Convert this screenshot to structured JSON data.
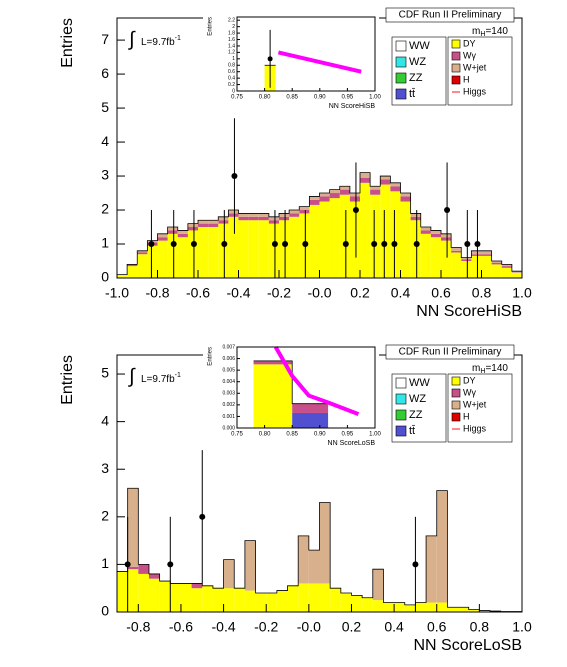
{
  "chart_data": [
    {
      "type": "histogram",
      "experiment": "CDF Run II Preliminary",
      "mass_label": "m",
      "mass_sub": "H",
      "mass_value": "=140",
      "lumi": "L=9.7fb",
      "lumi_sup": "-1",
      "x_label": "NN ScoreHiSB",
      "y_label": "Entries",
      "xlim": [
        -1,
        1
      ],
      "ylim": [
        0,
        7.65
      ],
      "xticks": [
        {
          "value": -1,
          "label": "-1.0"
        },
        -0.8,
        -0.6,
        -0.4,
        -0.2,
        {
          "value": 0,
          "label": "-0.0"
        },
        0.2,
        0.4,
        0.6,
        0.8,
        {
          "value": 1,
          "label": "1.0"
        }
      ],
      "yticks": [
        0,
        1,
        2,
        3,
        4,
        5,
        6,
        7
      ],
      "bins": [
        -1,
        -0.95,
        -0.9,
        -0.85,
        -0.8,
        -0.75,
        -0.7,
        -0.65,
        -0.6,
        -0.55,
        -0.5,
        -0.45,
        -0.4,
        -0.35,
        -0.3,
        -0.25,
        -0.2,
        -0.15,
        -0.1,
        -0.05,
        0,
        0.05,
        0.1,
        0.15,
        0.2,
        0.25,
        0.3,
        0.35,
        0.4,
        0.45,
        0.5,
        0.55,
        0.6,
        0.65,
        0.7,
        0.75,
        0.8,
        0.85,
        0.9,
        0.95,
        1
      ],
      "series": [
        {
          "name": "WW",
          "color": "#ffffff"
        },
        {
          "name": "WZ",
          "color": "#33e6e6"
        },
        {
          "name": "ZZ",
          "color": "#33cc33"
        },
        {
          "name": "tt̄",
          "color": "#5050d0"
        },
        {
          "name": "DY",
          "color": "#ffff00",
          "values": [
            0.1,
            0.35,
            0.7,
            0.95,
            1.1,
            1.3,
            1.2,
            1.4,
            1.5,
            1.5,
            1.6,
            1.8,
            1.7,
            1.7,
            1.7,
            1.6,
            1.7,
            1.8,
            1.9,
            2.15,
            2.25,
            2.35,
            2.45,
            2.25,
            2.8,
            2.45,
            2.75,
            2.55,
            2.25,
            1.7,
            1.3,
            1.2,
            1.1,
            0.75,
            0.5,
            0.65,
            0.65,
            0.4,
            0.3,
            0.15
          ]
        },
        {
          "name": "Wγ",
          "color": "#c8508a",
          "values": [
            0,
            0.05,
            0.05,
            0.1,
            0.1,
            0.1,
            0.1,
            0.1,
            0.1,
            0.1,
            0.1,
            0.1,
            0.1,
            0.1,
            0.1,
            0.1,
            0.1,
            0.1,
            0.1,
            0.15,
            0.15,
            0.15,
            0.15,
            0.15,
            0.15,
            0.15,
            0.15,
            0.15,
            0.15,
            0.1,
            0.1,
            0.1,
            0.1,
            0.05,
            0.05,
            0.05,
            0.05,
            0.05,
            0.05,
            0
          ]
        },
        {
          "name": "W+jet",
          "color": "#d9b08c",
          "values": [
            0,
            0,
            0.05,
            0.05,
            0.1,
            0.1,
            0.1,
            0.1,
            0.1,
            0.1,
            0.1,
            0.1,
            0.1,
            0.1,
            0.1,
            0.1,
            0.1,
            0.1,
            0.1,
            0.1,
            0.1,
            0.1,
            0.1,
            0.1,
            0.15,
            0.1,
            0.1,
            0.1,
            0.1,
            0.1,
            0.1,
            0.1,
            0.1,
            0.1,
            0.05,
            0.1,
            0.1,
            0.05,
            0.05,
            0.05
          ]
        },
        {
          "name": "H",
          "color": "#e00000"
        },
        {
          "name": "Higgs",
          "color": "#ff6060",
          "style": "line"
        }
      ],
      "data_points": {
        "x": [
          -0.83,
          -0.72,
          -0.62,
          -0.47,
          -0.42,
          -0.22,
          -0.17,
          -0.07,
          0.13,
          0.18,
          0.27,
          0.32,
          0.37,
          0.48,
          0.63,
          0.73,
          0.78
        ],
        "y": [
          1,
          1,
          1,
          1,
          3,
          1,
          1,
          1,
          1,
          2,
          1,
          1,
          1,
          1,
          2,
          1,
          1
        ],
        "err": [
          1,
          1,
          1,
          1,
          1.7,
          1,
          1,
          1,
          1,
          1.4,
          1,
          1,
          1,
          1,
          1.4,
          1,
          1
        ]
      },
      "inset": {
        "x_label": "NN ScoreHiSB",
        "y_label": "Entries",
        "xlim": [
          0.75,
          1
        ],
        "ylim": [
          0,
          2.3
        ],
        "xticks": [
          0.75,
          {
            "value": 0.8,
            "label": "0.80"
          },
          0.85,
          {
            "value": 0.9,
            "label": "0.90"
          },
          0.95,
          {
            "value": 1,
            "label": "1.00"
          }
        ],
        "yticks": [
          0,
          0.2,
          0.4,
          0.6,
          0.8,
          1,
          1.2,
          1.4,
          1.6,
          1.8,
          2,
          2.2
        ],
        "bins": [
          0.8,
          0.82
        ],
        "series": [
          {
            "color": "#ffff00",
            "values": [
              0.8
            ]
          }
        ],
        "line": {
          "color": "#ff00ff",
          "x": [
            0.825,
            0.975
          ],
          "y": [
            1.2,
            0.6
          ]
        },
        "data_points": {
          "x": [
            0.81
          ],
          "y": [
            1
          ],
          "err": [
            0.9
          ]
        }
      }
    },
    {
      "type": "histogram",
      "experiment": "CDF Run II Preliminary",
      "mass_label": "m",
      "mass_sub": "H",
      "mass_value": "=140",
      "lumi": "L=9.7fb",
      "lumi_sup": "-1",
      "x_label": "NN ScoreLoSB",
      "y_label": "Entries",
      "xlim": [
        -0.9,
        1
      ],
      "ylim": [
        0,
        5.4
      ],
      "xticks": [
        -0.8,
        -0.6,
        -0.4,
        -0.2,
        {
          "value": 0,
          "label": "-0.0"
        },
        0.2,
        0.4,
        0.6,
        0.8,
        {
          "value": 1,
          "label": "1.0"
        }
      ],
      "yticks": [
        0,
        1,
        2,
        3,
        4,
        5
      ],
      "bins": [
        -0.9,
        -0.85,
        -0.8,
        -0.75,
        -0.7,
        -0.65,
        -0.6,
        -0.55,
        -0.5,
        -0.45,
        -0.4,
        -0.35,
        -0.3,
        -0.25,
        -0.2,
        -0.15,
        -0.1,
        -0.05,
        0,
        0.05,
        0.1,
        0.15,
        0.2,
        0.25,
        0.3,
        0.35,
        0.4,
        0.45,
        0.5,
        0.55,
        0.6,
        0.65,
        0.7,
        0.75,
        0.8,
        0.85,
        0.9,
        0.95,
        1
      ],
      "series": [
        {
          "name": "WW",
          "color": "#ffffff"
        },
        {
          "name": "WZ",
          "color": "#33e6e6"
        },
        {
          "name": "ZZ",
          "color": "#33cc33"
        },
        {
          "name": "tt̄",
          "color": "#5050d0"
        },
        {
          "name": "DY",
          "color": "#ffff00",
          "values": [
            0.85,
            0.9,
            0.8,
            0.7,
            0.65,
            0.6,
            0.6,
            0.5,
            0.55,
            0.5,
            0.5,
            0.5,
            0.45,
            0.4,
            0.4,
            0.45,
            0.55,
            0.6,
            0.6,
            0.6,
            0.5,
            0.4,
            0.35,
            0.3,
            0.25,
            0.2,
            0.2,
            0.15,
            0.2,
            0.2,
            0.2,
            0.1,
            0.1,
            0.05,
            0.03,
            0.02,
            0.01,
            0.01
          ]
        },
        {
          "name": "Wγ",
          "color": "#c8508a",
          "values": [
            0,
            0.05,
            0.2,
            0.1,
            0,
            0,
            0,
            0.1,
            0,
            0,
            0,
            0,
            0,
            0,
            0,
            0,
            0,
            0,
            0,
            0,
            0,
            0,
            0,
            0,
            0,
            0,
            0,
            0,
            0,
            0,
            0,
            0,
            0,
            0,
            0,
            0,
            0,
            0
          ]
        },
        {
          "name": "W+jet",
          "color": "#d9b08c",
          "values": [
            0,
            1.65,
            0,
            0,
            0,
            0,
            0,
            0,
            0,
            0,
            0.6,
            0,
            1.05,
            0,
            0,
            0,
            0,
            1,
            0.7,
            1.7,
            0,
            0,
            0,
            0,
            0.65,
            0,
            0,
            0,
            0,
            1.4,
            2.35,
            0,
            0,
            0,
            0,
            0,
            0,
            0
          ]
        },
        {
          "name": "H",
          "color": "#e00000"
        },
        {
          "name": "Higgs",
          "color": "#ff6060",
          "style": "line"
        }
      ],
      "data_points": {
        "x": [
          -0.85,
          -0.65,
          -0.5,
          0.5
        ],
        "y": [
          1,
          1,
          2,
          1
        ],
        "err": [
          1,
          1,
          1.4,
          1
        ]
      },
      "inset": {
        "x_label": "NN ScoreLoSB",
        "y_label": "Entries",
        "xlim": [
          0.75,
          1
        ],
        "ylim": [
          0,
          0.007
        ],
        "xticks": [
          0.75,
          {
            "value": 0.8,
            "label": "0.80"
          },
          0.85,
          {
            "value": 0.9,
            "label": "0.90"
          },
          0.95,
          {
            "value": 1,
            "label": "1.00"
          }
        ],
        "yticks": [
          {
            "value": 0,
            "label": "0.000"
          },
          0.001,
          0.002,
          0.003,
          0.004,
          0.005,
          0.006,
          0.007
        ],
        "bins": [
          0.78,
          0.85,
          0.915
        ],
        "series": [
          {
            "color": "#ffff00",
            "values": [
              0.0055,
              0
            ]
          },
          {
            "color": "#5050d0",
            "values": [
              0,
              0.0013
            ]
          },
          {
            "color": "#c8508a",
            "values": [
              0.0003,
              0.0008
            ]
          }
        ],
        "line": {
          "color": "#ff00ff",
          "x": [
            0.82,
            0.85,
            0.88,
            0.915,
            0.97
          ],
          "y": [
            0.007,
            0.0045,
            0.0028,
            0.0022,
            0.0012
          ]
        }
      }
    }
  ]
}
